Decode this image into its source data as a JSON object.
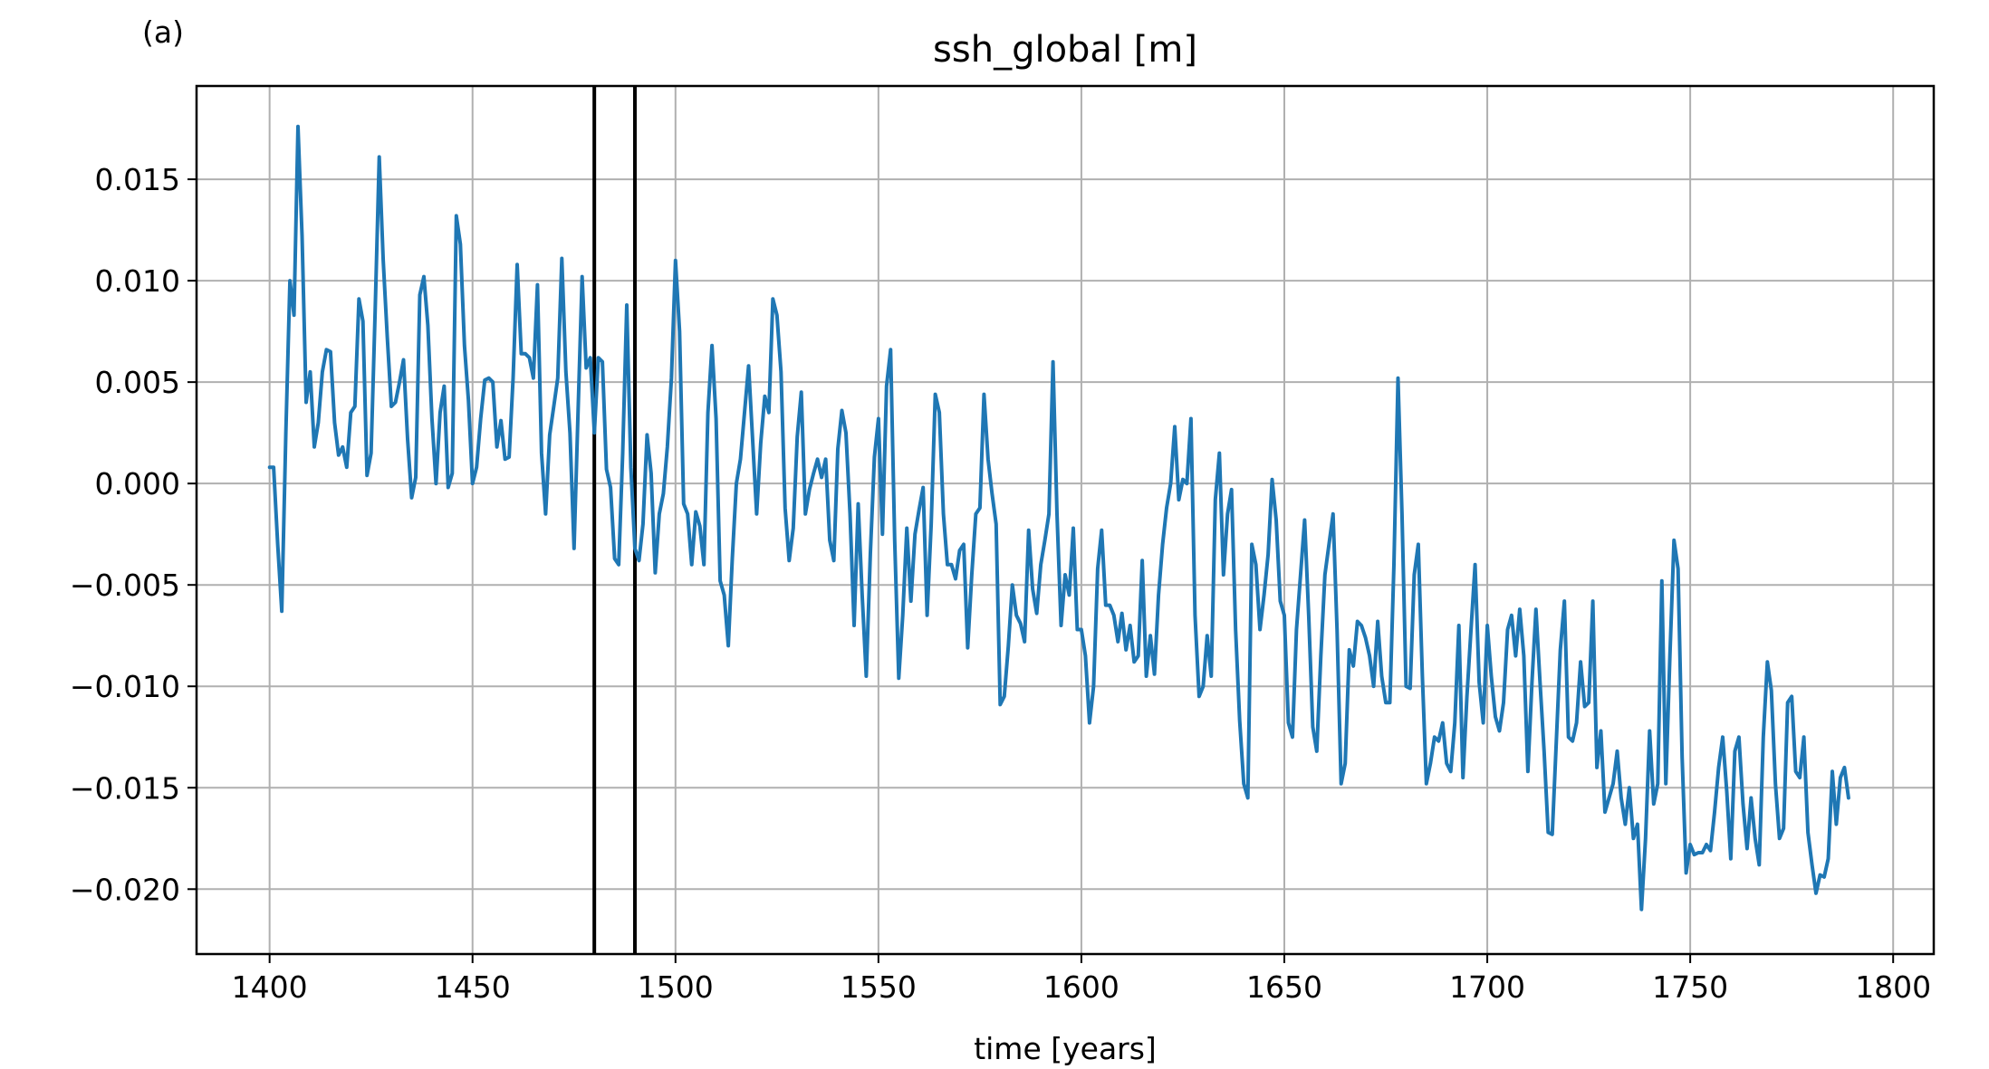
{
  "panel_label": "(a)",
  "chart_data": {
    "type": "line",
    "title": "ssh_global [m]",
    "xlabel": "time [years]",
    "ylabel": "",
    "xlim": [
      1382,
      1810
    ],
    "ylim": [
      -0.0232,
      0.0196
    ],
    "xticks": [
      1400,
      1450,
      1500,
      1550,
      1600,
      1650,
      1700,
      1750,
      1800
    ],
    "xtick_labels": [
      "1400",
      "1450",
      "1500",
      "1550",
      "1600",
      "1650",
      "1700",
      "1750",
      "1800"
    ],
    "yticks": [
      0.015,
      0.01,
      0.005,
      0.0,
      -0.005,
      -0.01,
      -0.015,
      -0.02
    ],
    "ytick_labels": [
      "0.015",
      "0.010",
      "0.005",
      "0.000",
      "−0.005",
      "−0.010",
      "−0.015",
      "−0.020"
    ],
    "grid": true,
    "colors": {
      "series": "#1f77b4",
      "vlines": "#000000",
      "grid": "#b0b0b0",
      "axes": "#000000"
    },
    "vlines": [
      1480,
      1490
    ],
    "series": [
      {
        "x": [
          1400,
          1401,
          1402,
          1403,
          1404,
          1405,
          1406,
          1407,
          1408,
          1409,
          1410,
          1411,
          1412,
          1413,
          1414,
          1415,
          1416,
          1417,
          1418,
          1419,
          1420,
          1421,
          1422,
          1423,
          1424,
          1425,
          1426,
          1427,
          1428,
          1429,
          1430,
          1431,
          1432,
          1433,
          1434,
          1435,
          1436,
          1437,
          1438,
          1439,
          1440,
          1441,
          1442,
          1443,
          1444,
          1445,
          1446,
          1447,
          1448,
          1449,
          1450,
          1451,
          1452,
          1453,
          1454,
          1455,
          1456,
          1457,
          1458,
          1459,
          1460,
          1461,
          1462,
          1463,
          1464,
          1465,
          1466,
          1467,
          1468,
          1469,
          1470,
          1471,
          1472,
          1473,
          1474,
          1475,
          1476,
          1477,
          1478,
          1479,
          1480,
          1481,
          1482,
          1483,
          1484,
          1485,
          1486,
          1487,
          1488,
          1489,
          1490,
          1491,
          1492,
          1493,
          1494,
          1495,
          1496,
          1497,
          1498,
          1499,
          1500,
          1501,
          1502,
          1503,
          1504,
          1505,
          1506,
          1507,
          1508,
          1509,
          1510,
          1511,
          1512,
          1513,
          1514,
          1515,
          1516,
          1517,
          1518,
          1519,
          1520,
          1521,
          1522,
          1523,
          1524,
          1525,
          1526,
          1527,
          1528,
          1529,
          1530,
          1531,
          1532,
          1533,
          1534,
          1535,
          1536,
          1537,
          1538,
          1539,
          1540,
          1541,
          1542,
          1543,
          1544,
          1545,
          1546,
          1547,
          1548,
          1549,
          1550,
          1551,
          1552,
          1553,
          1554,
          1555,
          1556,
          1557,
          1558,
          1559,
          1560,
          1561,
          1562,
          1563,
          1564,
          1565,
          1566,
          1567,
          1568,
          1569,
          1570,
          1571,
          1572,
          1573,
          1574,
          1575,
          1576,
          1577,
          1578,
          1579,
          1580,
          1581,
          1582,
          1583,
          1584,
          1585,
          1586,
          1587,
          1588,
          1589,
          1590,
          1591,
          1592,
          1593,
          1594,
          1595,
          1596,
          1597,
          1598,
          1599,
          1600,
          1601,
          1602,
          1603,
          1604,
          1605,
          1606,
          1607,
          1608,
          1609,
          1610,
          1611,
          1612,
          1613,
          1614,
          1615,
          1616,
          1617,
          1618,
          1619,
          1620,
          1621,
          1622,
          1623,
          1624,
          1625,
          1626,
          1627,
          1628,
          1629,
          1630,
          1631,
          1632,
          1633,
          1634,
          1635,
          1636,
          1637,
          1638,
          1639,
          1640,
          1641,
          1642,
          1643,
          1644,
          1645,
          1646,
          1647,
          1648,
          1649,
          1650,
          1651,
          1652,
          1653,
          1654,
          1655,
          1656,
          1657,
          1658,
          1659,
          1660,
          1661,
          1662,
          1663,
          1664,
          1665,
          1666,
          1667,
          1668,
          1669,
          1670,
          1671,
          1672,
          1673,
          1674,
          1675,
          1676,
          1677,
          1678,
          1679,
          1680,
          1681,
          1682,
          1683,
          1684,
          1685,
          1686,
          1687,
          1688,
          1689,
          1690,
          1691,
          1692,
          1693,
          1694,
          1695,
          1696,
          1697,
          1698,
          1699,
          1700,
          1701,
          1702,
          1703,
          1704,
          1705,
          1706,
          1707,
          1708,
          1709,
          1710,
          1711,
          1712,
          1713,
          1714,
          1715,
          1716,
          1717,
          1718,
          1719,
          1720,
          1721,
          1722,
          1723,
          1724,
          1725,
          1726,
          1727,
          1728,
          1729,
          1730,
          1731,
          1732,
          1733,
          1734,
          1735,
          1736,
          1737,
          1738,
          1739,
          1740,
          1741,
          1742,
          1743,
          1744,
          1745,
          1746,
          1747,
          1748,
          1749,
          1750,
          1751,
          1752,
          1753,
          1754,
          1755,
          1756,
          1757,
          1758,
          1759,
          1760,
          1761,
          1762,
          1763,
          1764,
          1765,
          1766,
          1767,
          1768,
          1769,
          1770,
          1771,
          1772,
          1773,
          1774,
          1775,
          1776,
          1777,
          1778,
          1779,
          1780,
          1781,
          1782,
          1783,
          1784,
          1785,
          1786,
          1787,
          1788,
          1789
        ],
        "values": [
          0.0008,
          0.0008,
          -0.003,
          -0.0063,
          0.0025,
          0.01,
          0.0083,
          0.0176,
          0.0122,
          0.004,
          0.0055,
          0.0018,
          0.003,
          0.0055,
          0.0066,
          0.0065,
          0.003,
          0.0014,
          0.0018,
          0.0008,
          0.0035,
          0.0038,
          0.0091,
          0.008,
          0.0004,
          0.0015,
          0.0085,
          0.0161,
          0.011,
          0.0072,
          0.0038,
          0.004,
          0.005,
          0.0061,
          0.0022,
          -0.0007,
          0.0003,
          0.0093,
          0.0102,
          0.0078,
          0.0032,
          0.0,
          0.0035,
          0.0048,
          -0.0002,
          0.0005,
          0.0132,
          0.0118,
          0.0068,
          0.0041,
          0.0,
          0.0008,
          0.0032,
          0.0051,
          0.0052,
          0.005,
          0.0018,
          0.0031,
          0.0012,
          0.0013,
          0.0052,
          0.0108,
          0.0064,
          0.0064,
          0.0062,
          0.0052,
          0.0098,
          0.0015,
          -0.0015,
          0.0024,
          0.0038,
          0.0052,
          0.0111,
          0.0055,
          0.0025,
          -0.0032,
          0.0035,
          0.0102,
          0.0057,
          0.0062,
          0.0025,
          0.0062,
          0.006,
          0.0007,
          -0.0002,
          -0.0037,
          -0.004,
          0.0015,
          0.0088,
          0.0008,
          -0.0032,
          -0.0038,
          -0.002,
          0.0024,
          0.0005,
          -0.0044,
          -0.0015,
          -0.0005,
          0.0018,
          0.0052,
          0.011,
          0.0075,
          -0.001,
          -0.0015,
          -0.004,
          -0.0014,
          -0.0021,
          -0.004,
          0.0035,
          0.0068,
          0.0032,
          -0.0048,
          -0.0055,
          -0.008,
          -0.0037,
          0.0,
          0.0012,
          0.0035,
          0.0058,
          0.0022,
          -0.0015,
          0.002,
          0.0043,
          0.0035,
          0.0091,
          0.0083,
          0.0055,
          -0.0012,
          -0.0038,
          -0.0022,
          0.0023,
          0.0045,
          -0.0015,
          -0.0003,
          0.0005,
          0.0012,
          0.0003,
          0.0012,
          -0.0028,
          -0.0038,
          0.0017,
          0.0036,
          0.0025,
          -0.0015,
          -0.007,
          -0.001,
          -0.0055,
          -0.0095,
          -0.0035,
          0.0013,
          0.0032,
          -0.0025,
          0.0048,
          0.0066,
          -0.0028,
          -0.0096,
          -0.0065,
          -0.0022,
          -0.0058,
          -0.0025,
          -0.0013,
          -0.0002,
          -0.0065,
          -0.002,
          0.0044,
          0.0035,
          -0.0015,
          -0.004,
          -0.004,
          -0.0047,
          -0.0033,
          -0.003,
          -0.0081,
          -0.0045,
          -0.0015,
          -0.0012,
          0.0044,
          0.0012,
          -0.0005,
          -0.002,
          -0.0109,
          -0.0105,
          -0.008,
          -0.005,
          -0.0065,
          -0.0069,
          -0.0078,
          -0.0023,
          -0.0052,
          -0.0064,
          -0.004,
          -0.0028,
          -0.0015,
          0.006,
          -0.0015,
          -0.007,
          -0.0045,
          -0.0055,
          -0.0022,
          -0.0072,
          -0.0072,
          -0.0085,
          -0.0118,
          -0.01,
          -0.0042,
          -0.0023,
          -0.006,
          -0.006,
          -0.0065,
          -0.0078,
          -0.0064,
          -0.0082,
          -0.007,
          -0.0088,
          -0.0085,
          -0.0038,
          -0.0095,
          -0.0075,
          -0.0094,
          -0.0055,
          -0.003,
          -0.0012,
          0.0,
          0.0028,
          -0.0008,
          0.0002,
          0.0,
          0.0032,
          -0.0065,
          -0.0105,
          -0.01,
          -0.0075,
          -0.0095,
          -0.0008,
          0.0015,
          -0.0045,
          -0.0015,
          -0.0003,
          -0.0072,
          -0.0117,
          -0.0148,
          -0.0155,
          -0.003,
          -0.004,
          -0.0072,
          -0.0055,
          -0.0035,
          0.0002,
          -0.0018,
          -0.0058,
          -0.0065,
          -0.0118,
          -0.0125,
          -0.0072,
          -0.0045,
          -0.0018,
          -0.0065,
          -0.012,
          -0.0132,
          -0.0085,
          -0.0045,
          -0.003,
          -0.0015,
          -0.0072,
          -0.0148,
          -0.0138,
          -0.0082,
          -0.009,
          -0.0068,
          -0.007,
          -0.0076,
          -0.0085,
          -0.01,
          -0.0068,
          -0.0095,
          -0.0108,
          -0.0108,
          -0.004,
          0.0052,
          -0.0015,
          -0.01,
          -0.0101,
          -0.0045,
          -0.003,
          -0.0095,
          -0.0148,
          -0.0138,
          -0.0125,
          -0.0127,
          -0.0118,
          -0.0138,
          -0.0142,
          -0.0118,
          -0.007,
          -0.0145,
          -0.0105,
          -0.0072,
          -0.004,
          -0.0098,
          -0.0118,
          -0.007,
          -0.0095,
          -0.0115,
          -0.0122,
          -0.0108,
          -0.0072,
          -0.0065,
          -0.0085,
          -0.0062,
          -0.0085,
          -0.0142,
          -0.0098,
          -0.0062,
          -0.0098,
          -0.0132,
          -0.0172,
          -0.0173,
          -0.0128,
          -0.0082,
          -0.0058,
          -0.0125,
          -0.0127,
          -0.0118,
          -0.0088,
          -0.011,
          -0.0108,
          -0.0058,
          -0.014,
          -0.0122,
          -0.0162,
          -0.0155,
          -0.0148,
          -0.0132,
          -0.0155,
          -0.0168,
          -0.015,
          -0.0175,
          -0.0168,
          -0.021,
          -0.0175,
          -0.0122,
          -0.0158,
          -0.0148,
          -0.0048,
          -0.0148,
          -0.0085,
          -0.0028,
          -0.0042,
          -0.0135,
          -0.0192,
          -0.0178,
          -0.0183,
          -0.0182,
          -0.0182,
          -0.0178,
          -0.0181,
          -0.0162,
          -0.014,
          -0.0125,
          -0.0152,
          -0.0185,
          -0.0132,
          -0.0125,
          -0.0158,
          -0.018,
          -0.0155,
          -0.0175,
          -0.0188,
          -0.0125,
          -0.0088,
          -0.0102,
          -0.0148,
          -0.0175,
          -0.017,
          -0.0108,
          -0.0105,
          -0.0142,
          -0.0145,
          -0.0125,
          -0.0172,
          -0.0188,
          -0.0202,
          -0.0193,
          -0.0194,
          -0.0185,
          -0.0142,
          -0.0168,
          -0.0145,
          -0.014,
          -0.0155
        ]
      }
    ]
  }
}
